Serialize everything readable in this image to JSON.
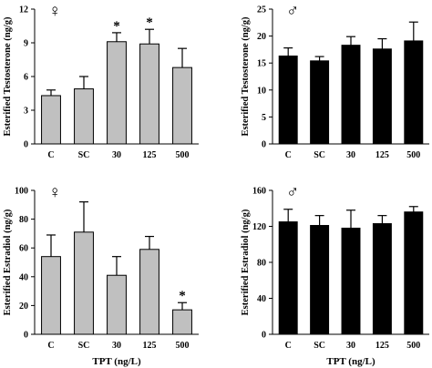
{
  "chart_data": [
    {
      "type": "bar",
      "panel_symbol": "♀",
      "categories": [
        "C",
        "SC",
        "30",
        "125",
        "500"
      ],
      "values": [
        4.3,
        4.9,
        9.1,
        8.9,
        6.8
      ],
      "errors": [
        0.5,
        1.1,
        0.8,
        1.3,
        1.7
      ],
      "significant": [
        false,
        false,
        true,
        true,
        false
      ],
      "significance_marker": "*",
      "bar_color": "#c0c0c0",
      "xlabel": "",
      "ylabel": "Esterified Testosterone (ng/g)",
      "ylim": [
        0,
        12
      ],
      "yticks": [
        0,
        3,
        6,
        9,
        12
      ]
    },
    {
      "type": "bar",
      "panel_symbol": "♂",
      "categories": [
        "C",
        "SC",
        "30",
        "125",
        "500"
      ],
      "values": [
        16.3,
        15.4,
        18.3,
        17.6,
        19.1
      ],
      "errors": [
        1.5,
        0.8,
        1.6,
        1.9,
        3.5
      ],
      "significant": [
        false,
        false,
        false,
        false,
        false
      ],
      "significance_marker": "*",
      "bar_color": "#000000",
      "xlabel": "",
      "ylabel": "Esterified Testosterone (ng/g)",
      "ylim": [
        0,
        25
      ],
      "yticks": [
        0,
        5,
        10,
        15,
        20,
        25
      ]
    },
    {
      "type": "bar",
      "panel_symbol": "♀",
      "categories": [
        "C",
        "SC",
        "30",
        "125",
        "500"
      ],
      "values": [
        54,
        71,
        41,
        59,
        17
      ],
      "errors": [
        15,
        21,
        13,
        9,
        5
      ],
      "significant": [
        false,
        false,
        false,
        false,
        true
      ],
      "significance_marker": "*",
      "bar_color": "#c0c0c0",
      "xlabel": "TPT (ng/L)",
      "ylabel": "Esterified Estradiol (ng/g)",
      "ylim": [
        0,
        100
      ],
      "yticks": [
        0,
        20,
        40,
        60,
        80,
        100
      ]
    },
    {
      "type": "bar",
      "panel_symbol": "♂",
      "categories": [
        "C",
        "SC",
        "30",
        "125",
        "500"
      ],
      "values": [
        125,
        121,
        118,
        123,
        136
      ],
      "errors": [
        14,
        11,
        20,
        9,
        6
      ],
      "significant": [
        false,
        false,
        false,
        false,
        false
      ],
      "significance_marker": "*",
      "bar_color": "#000000",
      "xlabel": "TPT (ng/L)",
      "ylabel": "Esterified Estradiol (ng/g)",
      "ylim": [
        0,
        160
      ],
      "yticks": [
        0,
        40,
        80,
        120,
        160
      ]
    }
  ]
}
